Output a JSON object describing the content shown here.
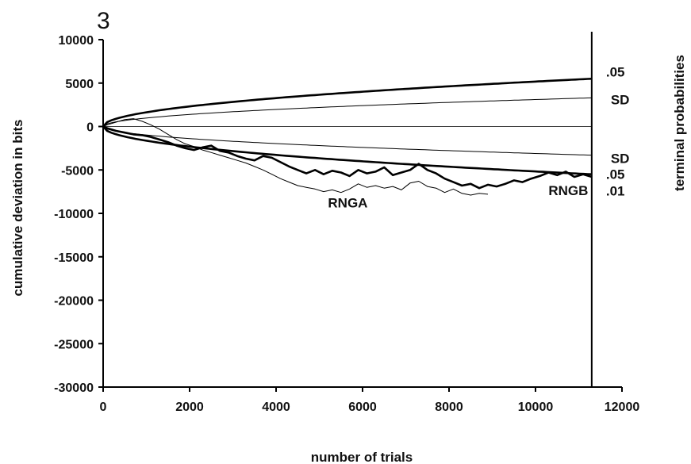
{
  "panel_label": "3",
  "chart_data": {
    "type": "line",
    "xlabel": "number of trials",
    "ylabel": "cumulative deviation in bits",
    "right_label": "terminal probabilities",
    "xlim": [
      0,
      12000
    ],
    "ylim": [
      -30000,
      10000
    ],
    "xticks": [
      0,
      2000,
      4000,
      6000,
      8000,
      10000,
      12000
    ],
    "yticks": [
      -30000,
      -25000,
      -20000,
      -15000,
      -10000,
      -5000,
      0,
      5000,
      10000
    ],
    "grid": false,
    "terminal_trials": 11300,
    "envelopes": [
      {
        "label": ".05",
        "sign": 1,
        "end_value": 5500,
        "weight": "heavy"
      },
      {
        "label": "SD",
        "sign": 1,
        "end_value": 3300,
        "weight": "light"
      },
      {
        "label": "SD",
        "sign": -1,
        "end_value": -3300,
        "weight": "light"
      },
      {
        "label": ".05",
        "sign": -1,
        "end_value": -5500,
        "weight": "heavy"
      }
    ],
    "extra_labels": [
      ".01"
    ],
    "series": [
      {
        "name": "RNGA",
        "weight": "light",
        "x": [
          0,
          100,
          300,
          500,
          700,
          900,
          1100,
          1300,
          1500,
          1700,
          1900,
          2100,
          2300,
          2500,
          2700,
          2900,
          3100,
          3300,
          3500,
          3700,
          3900,
          4100,
          4300,
          4500,
          4700,
          4900,
          5100,
          5300,
          5500,
          5700,
          5900,
          6100,
          6300,
          6500,
          6700,
          6900,
          7100,
          7300,
          7500,
          7700,
          7900,
          8100,
          8300,
          8500,
          8700,
          8900
        ],
        "y": [
          0,
          200,
          500,
          800,
          900,
          600,
          200,
          -300,
          -900,
          -1500,
          -2000,
          -2300,
          -2700,
          -3000,
          -3300,
          -3600,
          -3900,
          -4200,
          -4600,
          -5000,
          -5500,
          -6000,
          -6400,
          -6800,
          -7000,
          -7200,
          -7500,
          -7300,
          -7600,
          -7200,
          -6600,
          -7000,
          -6800,
          -7100,
          -6900,
          -7300,
          -6500,
          -6300,
          -6900,
          -7100,
          -7600,
          -7200,
          -7700,
          -7900,
          -7700,
          -7800
        ]
      },
      {
        "name": "RNGB",
        "weight": "heavy",
        "x": [
          0,
          100,
          300,
          500,
          700,
          900,
          1100,
          1300,
          1500,
          1700,
          1900,
          2100,
          2300,
          2500,
          2700,
          2900,
          3100,
          3300,
          3500,
          3700,
          3900,
          4100,
          4300,
          4500,
          4700,
          4900,
          5100,
          5300,
          5500,
          5700,
          5900,
          6100,
          6300,
          6500,
          6700,
          6900,
          7100,
          7300,
          7500,
          7700,
          7900,
          8100,
          8300,
          8500,
          8700,
          8900,
          9100,
          9300,
          9500,
          9700,
          9900,
          10100,
          10300,
          10500,
          10700,
          10900,
          11100,
          11300
        ],
        "y": [
          0,
          -200,
          -500,
          -700,
          -900,
          -1000,
          -1200,
          -1500,
          -1800,
          -2200,
          -2500,
          -2700,
          -2400,
          -2200,
          -2800,
          -3000,
          -3400,
          -3700,
          -3900,
          -3400,
          -3600,
          -4100,
          -4600,
          -5000,
          -5400,
          -5000,
          -5500,
          -5100,
          -5300,
          -5700,
          -5000,
          -5400,
          -5200,
          -4700,
          -5600,
          -5300,
          -5000,
          -4300,
          -5000,
          -5400,
          -6000,
          -6400,
          -6800,
          -6600,
          -7100,
          -6700,
          -6900,
          -6600,
          -6200,
          -6400,
          -6000,
          -5700,
          -5300,
          -5600,
          -5200,
          -5800,
          -5500,
          -5800
        ]
      }
    ]
  }
}
